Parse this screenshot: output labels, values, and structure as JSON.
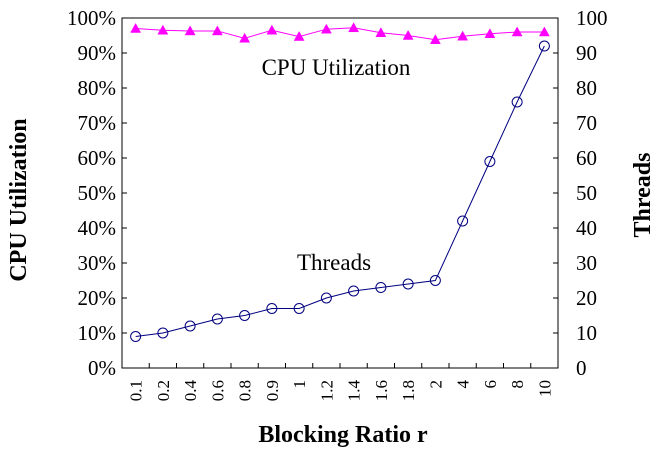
{
  "chart_data": {
    "type": "line",
    "title": "",
    "xlabel": "Blocking Ratio r",
    "ylabel_left": "CPU Utilization",
    "ylabel_right": "Threads",
    "categories": [
      "0.1",
      "0.2",
      "0.4",
      "0.6",
      "0.8",
      "0.9",
      "1",
      "1.2",
      "1.4",
      "1.6",
      "1.8",
      "2",
      "4",
      "6",
      "8",
      "10"
    ],
    "y_left": {
      "ylim": [
        0,
        100
      ],
      "ticks": [
        0,
        10,
        20,
        30,
        40,
        50,
        60,
        70,
        80,
        90,
        100
      ],
      "tick_labels": [
        "0%",
        "10%",
        "20%",
        "30%",
        "40%",
        "50%",
        "60%",
        "70%",
        "80%",
        "90%",
        "100%"
      ]
    },
    "y_right": {
      "ylim": [
        0,
        100
      ],
      "ticks": [
        0,
        10,
        20,
        30,
        40,
        50,
        60,
        70,
        80,
        90,
        100
      ],
      "tick_labels": [
        "0",
        "10",
        "20",
        "30",
        "40",
        "50",
        "60",
        "70",
        "80",
        "90",
        "100"
      ]
    },
    "series": [
      {
        "name": "CPU Utilization",
        "axis": "left",
        "marker": "triangle",
        "color": "#ff00ff",
        "values": [
          97,
          96.5,
          96.3,
          96.3,
          94.2,
          96.5,
          94.7,
          96.8,
          97.2,
          95.8,
          95,
          93.8,
          94.8,
          95.5,
          96,
          96
        ]
      },
      {
        "name": "Threads",
        "axis": "right",
        "marker": "circle",
        "color": "#000080",
        "values": [
          9,
          10,
          12,
          14,
          15,
          17,
          17,
          20,
          22,
          23,
          24,
          25,
          42,
          59,
          76,
          92
        ]
      }
    ],
    "annotations": [
      {
        "text": "CPU Utilization",
        "series": "CPU Utilization"
      },
      {
        "text": "Threads",
        "series": "Threads"
      }
    ],
    "grid": false,
    "legend": "none"
  }
}
